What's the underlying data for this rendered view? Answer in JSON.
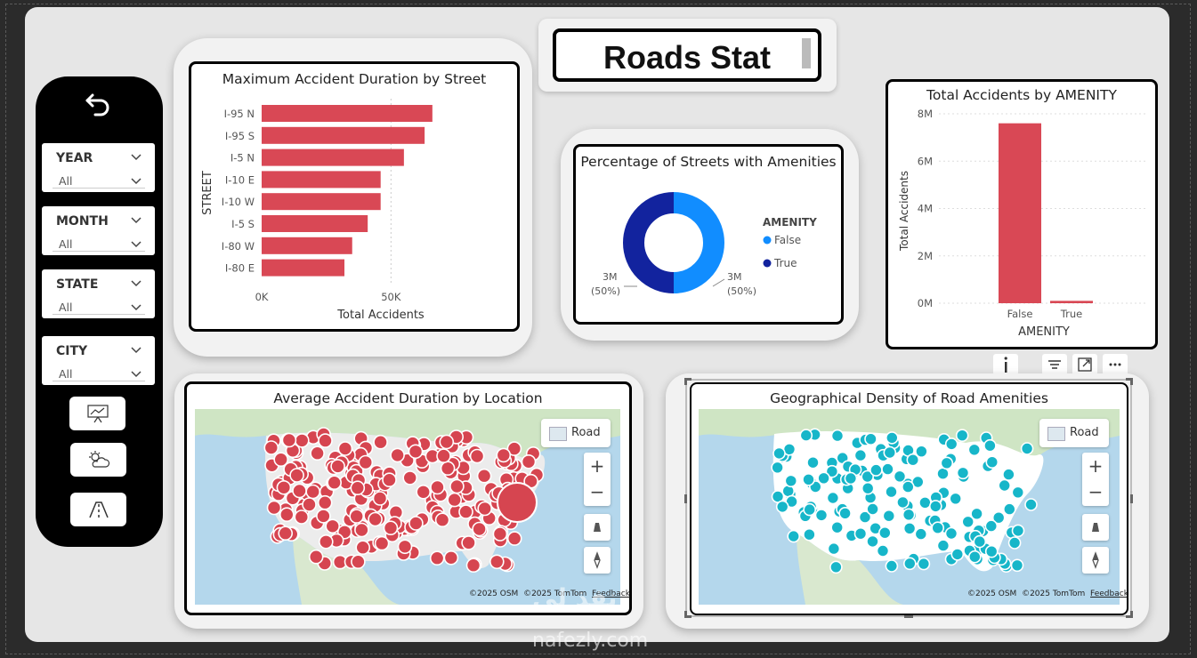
{
  "title": "Roads Stat",
  "sidebar": {
    "slicers": [
      {
        "label": "YEAR",
        "value": "All"
      },
      {
        "label": "MONTH",
        "value": "All"
      },
      {
        "label": "STATE",
        "value": "All"
      },
      {
        "label": "CITY",
        "value": "All"
      }
    ],
    "nav_icons": [
      "presentation-chart-icon",
      "weather-icon",
      "road-icon"
    ]
  },
  "bar_chart": {
    "title": "Maximum Accident Duration by Street",
    "ylabel": "STREET",
    "xlabel": "Total Accidents",
    "ticks": [
      "0K",
      "50K"
    ]
  },
  "donut_chart": {
    "title": "Percentage of Streets with Amenities",
    "legend_title": "AMENITY",
    "legend": [
      "False",
      "True"
    ],
    "label_left_value": "3M",
    "label_left_pct": "(50%)",
    "label_right_value": "3M",
    "label_right_pct": "(50%)"
  },
  "column_chart": {
    "title": "Total Accidents by AMENITY",
    "ylabel": "Total Accidents",
    "xlabel": "AMENITY",
    "yticks": [
      "8M",
      "6M",
      "4M",
      "2M",
      "0M"
    ]
  },
  "map_left": {
    "title": "Average Accident Duration by Location",
    "style_label": "Road",
    "attribution_osm": "©2025 OSM",
    "attribution_tomtom": "©2025 TomTom",
    "feedback": "Feedback",
    "controls": [
      "+",
      "−"
    ]
  },
  "map_right": {
    "title": "Geographical Density of Road Amenities",
    "style_label": "Road",
    "attribution_osm": "©2025 OSM",
    "attribution_tomtom": "©2025 TomTom",
    "feedback": "Feedback",
    "controls": [
      "+",
      "−"
    ]
  },
  "watermark": {
    "line1": "نفذ لي",
    "line2": "nafezly.com"
  },
  "colors": {
    "bar": "#d94855",
    "donut_false": "#118dff",
    "donut_true": "#12239e",
    "map_red": "#d64550",
    "map_teal": "#17b6c9"
  },
  "chart_data": [
    {
      "type": "bar",
      "title": "Maximum Accident Duration by Street",
      "xlabel": "Total Accidents",
      "ylabel": "STREET",
      "categories": [
        "I-95 N",
        "I-95 S",
        "I-5 N",
        "I-10 E",
        "I-10 W",
        "I-5 S",
        "I-80 W",
        "I-80 E"
      ],
      "values": [
        66000,
        63000,
        55000,
        46000,
        46000,
        41000,
        35000,
        32000
      ],
      "xlim": [
        0,
        75000
      ]
    },
    {
      "type": "pie",
      "title": "Percentage of Streets with Amenities",
      "categories": [
        "False",
        "True"
      ],
      "values": [
        3000000,
        3000000
      ],
      "percent": [
        50,
        50
      ]
    },
    {
      "type": "bar",
      "title": "Total Accidents by AMENITY",
      "xlabel": "AMENITY",
      "ylabel": "Total Accidents",
      "categories": [
        "False",
        "True"
      ],
      "values": [
        7600000,
        100000
      ],
      "ylim": [
        0,
        8000000
      ]
    }
  ]
}
